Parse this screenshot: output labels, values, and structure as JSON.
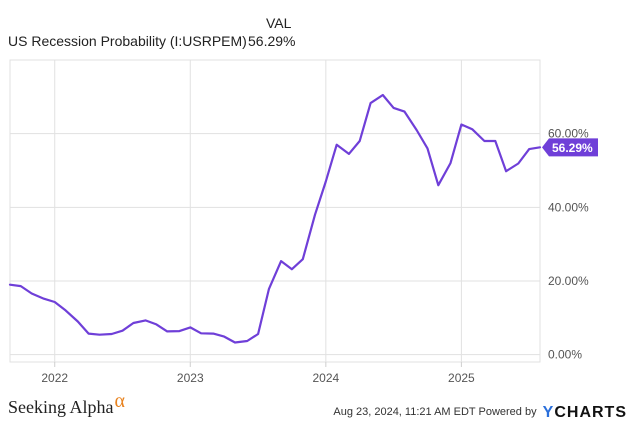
{
  "header": {
    "val_label": "VAL",
    "series_label": "US Recession Probability (I:USRPEM)",
    "series_value": "56.29%"
  },
  "footer": {
    "logo_text": "Seeking Alpha",
    "logo_symbol": "α",
    "timestamp_text": "Aug 23, 2024, 11:21 AM EDT Powered by",
    "brand_y": "Y",
    "brand_rest": "CHARTS"
  },
  "colors": {
    "line": "#6f3fd8",
    "grid": "#e1e1e1",
    "axis": "#cfcfcf",
    "logo_alpha": "#e8821e",
    "brand_y": "#2a6fdb"
  },
  "chart_data": {
    "type": "line",
    "title": "US Recession Probability (I:USRPEM)",
    "x_tick_labels": [
      "2022",
      "2023",
      "2024",
      "2025"
    ],
    "y_tick_labels": [
      "0.00%",
      "20.00%",
      "40.00%",
      "60.00%"
    ],
    "y_ticks": [
      0,
      20,
      40,
      60
    ],
    "ylim": [
      -2,
      80
    ],
    "xlim": [
      2021.67,
      2025.58
    ],
    "grid": true,
    "end_label": "56.29%",
    "series": [
      {
        "name": "US Recession Probability (I:USRPEM)",
        "x": [
          2021.67,
          2021.75,
          2021.83,
          2021.92,
          2022.0,
          2022.08,
          2022.17,
          2022.25,
          2022.33,
          2022.42,
          2022.5,
          2022.58,
          2022.67,
          2022.75,
          2022.83,
          2022.92,
          2023.0,
          2023.08,
          2023.17,
          2023.25,
          2023.33,
          2023.42,
          2023.5,
          2023.58,
          2023.67,
          2023.75,
          2023.83,
          2023.92,
          2024.0,
          2024.08,
          2024.17,
          2024.25,
          2024.33,
          2024.42,
          2024.5,
          2024.58,
          2024.67,
          2024.75,
          2024.83,
          2024.92,
          2025.0,
          2025.08,
          2025.17,
          2025.25,
          2025.33,
          2025.42,
          2025.5,
          2025.58
        ],
        "y": [
          19.0,
          18.6,
          16.6,
          15.2,
          14.3,
          12.0,
          9.0,
          5.7,
          5.4,
          5.6,
          6.5,
          8.6,
          9.3,
          8.2,
          6.3,
          6.4,
          7.4,
          5.8,
          5.7,
          4.9,
          3.3,
          3.7,
          5.6,
          17.8,
          25.4,
          23.2,
          25.9,
          38.0,
          47.0,
          57.0,
          54.5,
          58.0,
          68.3,
          70.5,
          67.0,
          66.0,
          61.0,
          56.0,
          46.0,
          52.0,
          62.5,
          61.2,
          58.0,
          58.0,
          49.8,
          51.9,
          55.8,
          56.29
        ]
      }
    ]
  }
}
